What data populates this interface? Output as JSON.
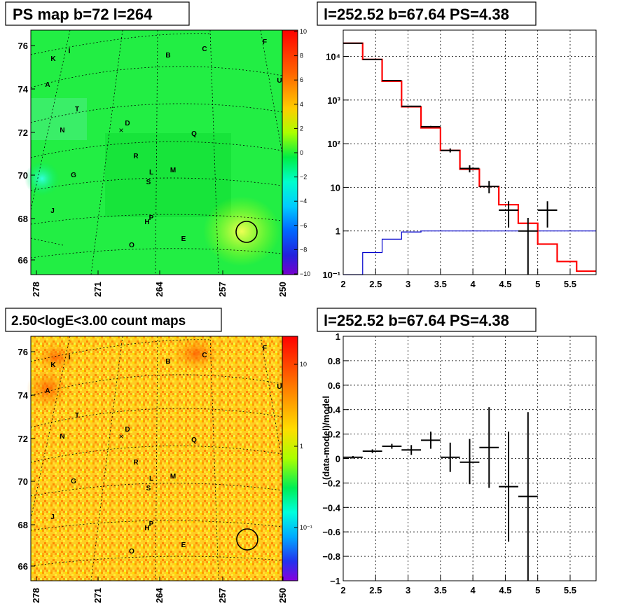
{
  "titles": {
    "ps_map": "PS map b=72 l=264",
    "spectrum": "l=252.52 b=67.64 PS=4.38",
    "count_map": "2.50<logE<3.00 count maps",
    "residual": "l=252.52 b=67.64 PS=4.38"
  },
  "sky_maps": {
    "x_ticks": [
      "278",
      "271",
      "264",
      "257",
      "250"
    ],
    "y_ticks": [
      "76",
      "74",
      "72",
      "70",
      "68",
      "66"
    ],
    "sources": [
      "K",
      "I",
      "B",
      "C",
      "F",
      "A",
      "U",
      "T",
      "D",
      "N",
      "Q",
      "R",
      "G",
      "L",
      "M",
      "S",
      "J",
      "P",
      "H",
      "E",
      "O"
    ],
    "marker_symbol": "×"
  },
  "colorbars": {
    "ps_map": [
      "10",
      "8",
      "6",
      "4",
      "2",
      "0",
      "−2",
      "−4",
      "−6",
      "−8",
      "−10"
    ],
    "count_map": [
      "10",
      "1",
      "10⁻¹"
    ]
  },
  "colors": {
    "data": "#000000",
    "model": "#ff0000",
    "background": "#0000cc"
  },
  "chart_data": [
    {
      "type": "line",
      "panel": "spectrum",
      "yscale": "log",
      "xlim": [
        2,
        5.9
      ],
      "ylim": [
        0.1,
        40000
      ],
      "x_ticks": [
        "2",
        "2.5",
        "3",
        "3.5",
        "4",
        "4.5",
        "5",
        "5.5"
      ],
      "y_ticks": [
        "10⁴",
        "10³",
        "10²",
        "10",
        "1",
        "10⁻¹"
      ],
      "model_step": {
        "edges": [
          2.0,
          2.3,
          2.6,
          2.9,
          3.2,
          3.5,
          3.8,
          4.1,
          4.4,
          4.7,
          5.0,
          5.3,
          5.6,
          5.9
        ],
        "values": [
          20000,
          8500,
          2700,
          700,
          230,
          70,
          26,
          10.5,
          4,
          1.5,
          0.5,
          0.2,
          0.12
        ]
      },
      "background_step": {
        "edges": [
          2.0,
          2.3,
          2.6,
          2.9,
          3.2,
          3.5,
          5.9
        ],
        "values": [
          0.1,
          0.32,
          0.65,
          0.95,
          1.0,
          1.0
        ]
      },
      "data_points": [
        {
          "x": 2.15,
          "y": 20000,
          "ylo": 19800,
          "yhi": 20200
        },
        {
          "x": 2.45,
          "y": 8500,
          "ylo": 8400,
          "yhi": 8600
        },
        {
          "x": 2.75,
          "y": 2800,
          "ylo": 2750,
          "yhi": 2850
        },
        {
          "x": 3.05,
          "y": 720,
          "ylo": 700,
          "yhi": 740
        },
        {
          "x": 3.35,
          "y": 245,
          "ylo": 235,
          "yhi": 255
        },
        {
          "x": 3.65,
          "y": 70,
          "ylo": 63,
          "yhi": 78
        },
        {
          "x": 3.95,
          "y": 27,
          "ylo": 22,
          "yhi": 32
        },
        {
          "x": 4.25,
          "y": 10.5,
          "ylo": 7.3,
          "yhi": 14
        },
        {
          "x": 4.55,
          "y": 3,
          "ylo": 1.2,
          "yhi": 4.8
        },
        {
          "x": 4.85,
          "y": 1,
          "ylo": 0.1,
          "yhi": 2
        },
        {
          "x": 5.15,
          "y": 3,
          "ylo": 1.2,
          "yhi": 4.8
        }
      ]
    },
    {
      "type": "scatter",
      "panel": "residual",
      "xlim": [
        2,
        5.9
      ],
      "ylim": [
        -1,
        1
      ],
      "ylabel": "(data-model)/model",
      "x_ticks": [
        "2",
        "2.5",
        "3",
        "3.5",
        "4",
        "4.5",
        "5",
        "5.5"
      ],
      "y_ticks": [
        "1",
        "0.8",
        "0.6",
        "0.4",
        "0.2",
        "0",
        "−0.2",
        "−0.4",
        "−0.6",
        "−0.8",
        "−1"
      ],
      "points": [
        {
          "x": 2.15,
          "y": 0.01,
          "ylo": 0.0,
          "yhi": 0.02
        },
        {
          "x": 2.45,
          "y": 0.06,
          "ylo": 0.045,
          "yhi": 0.075
        },
        {
          "x": 2.75,
          "y": 0.1,
          "ylo": 0.08,
          "yhi": 0.12
        },
        {
          "x": 3.05,
          "y": 0.07,
          "ylo": 0.03,
          "yhi": 0.11
        },
        {
          "x": 3.35,
          "y": 0.15,
          "ylo": 0.08,
          "yhi": 0.22
        },
        {
          "x": 3.65,
          "y": 0.01,
          "ylo": -0.11,
          "yhi": 0.13
        },
        {
          "x": 3.95,
          "y": -0.03,
          "ylo": -0.21,
          "yhi": 0.16
        },
        {
          "x": 4.25,
          "y": 0.09,
          "ylo": -0.24,
          "yhi": 0.42
        },
        {
          "x": 4.55,
          "y": -0.23,
          "ylo": -0.68,
          "yhi": 0.22
        },
        {
          "x": 4.85,
          "y": -0.31,
          "ylo": -1.0,
          "yhi": 0.38
        }
      ]
    }
  ]
}
